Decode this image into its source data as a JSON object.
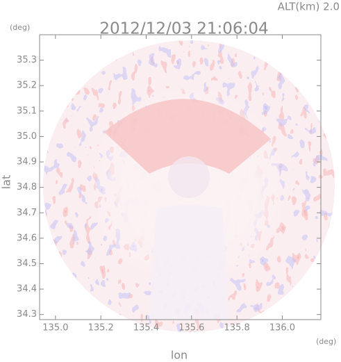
{
  "chart_data": {
    "type": "radar-image",
    "title": "2012/12/03 21:06:04",
    "annotation": "ALT(km) 2.0",
    "x_label": "lon",
    "y_label": "lat",
    "x_unit": "(deg)",
    "y_unit": "(deg)",
    "xlim": [
      134.93,
      136.17
    ],
    "ylim": [
      34.28,
      35.4
    ],
    "xticks": [
      {
        "value": 135,
        "label": "135.0"
      },
      135.2,
      135.4,
      135.6,
      135.8,
      {
        "value": 136,
        "label": "136.0"
      }
    ],
    "yticks": [
      34.3,
      34.4,
      34.5,
      34.6,
      34.7,
      34.8,
      34.9,
      {
        "value": 35,
        "label": "35.0"
      },
      35.1,
      35.2,
      35.3
    ]
  }
}
